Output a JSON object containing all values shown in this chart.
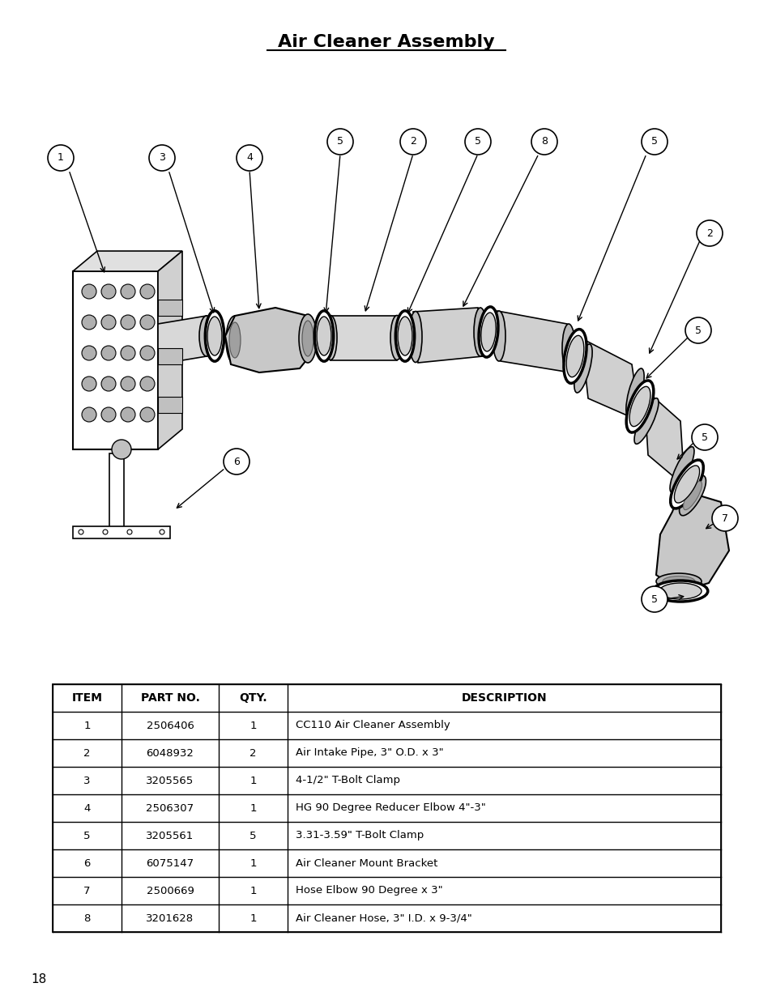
{
  "title": "Air Cleaner Assembly",
  "page_number": "18",
  "table_headers": [
    "ITEM",
    "PART NO.",
    "QTY.",
    "DESCRIPTION"
  ],
  "table_data": [
    [
      "1",
      "2506406",
      "1",
      "CC110 Air Cleaner Assembly"
    ],
    [
      "2",
      "6048932",
      "2",
      "Air Intake Pipe, 3\" O.D. x 3\""
    ],
    [
      "3",
      "3205565",
      "1",
      "4-1/2\" T-Bolt Clamp"
    ],
    [
      "4",
      "2506307",
      "1",
      "HG 90 Degree Reducer Elbow 4\"-3\""
    ],
    [
      "5",
      "3205561",
      "5",
      "3.31-3.59\" T-Bolt Clamp"
    ],
    [
      "6",
      "6075147",
      "1",
      "Air Cleaner Mount Bracket"
    ],
    [
      "7",
      "2500669",
      "1",
      "Hose Elbow 90 Degree x 3\""
    ],
    [
      "8",
      "3201628",
      "1",
      "Air Cleaner Hose, 3\" I.D. x 9-3/4\""
    ]
  ],
  "background_color": "#ffffff",
  "text_color": "#000000"
}
